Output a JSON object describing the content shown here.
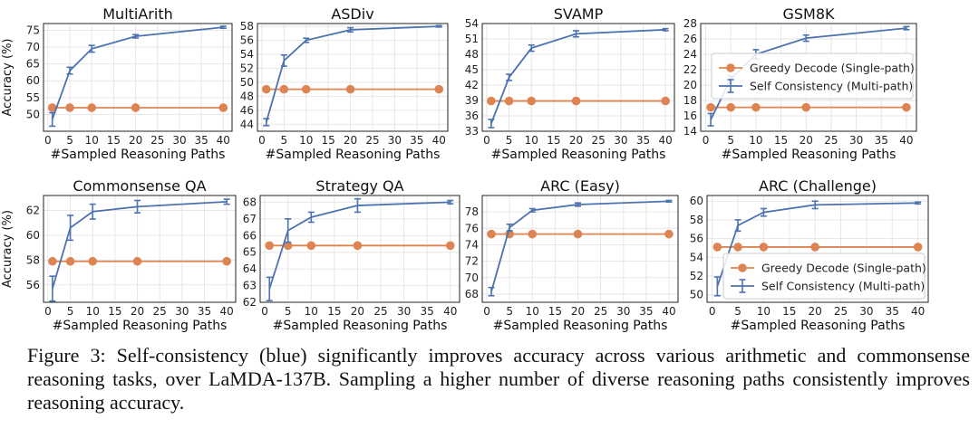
{
  "colors": {
    "greedy": "#dd8452",
    "self_consistency": "#4c72b0",
    "grid": "#e6e6e6",
    "axis": "#222222"
  },
  "chart_data": [
    {
      "type": "line",
      "title": "MultiArith",
      "xlabel": "#Sampled Reasoning Paths",
      "ylabel": "Accuracy (%)",
      "x": [
        1,
        5,
        10,
        20,
        40
      ],
      "xticks": [
        0,
        5,
        10,
        15,
        20,
        25,
        30,
        35,
        40
      ],
      "ylim": [
        45,
        77
      ],
      "yticks": [
        50,
        55,
        60,
        65,
        70,
        75
      ],
      "grid": true,
      "legend": "none",
      "series": [
        {
          "key": "greedy",
          "values": [
            52,
            52,
            52,
            52,
            52
          ],
          "error": [
            0,
            0,
            0,
            0,
            0
          ]
        },
        {
          "key": "sc",
          "values": [
            48.5,
            63,
            69.5,
            73.2,
            75.9
          ],
          "error": [
            2,
            1,
            1,
            0.5,
            0.3
          ]
        }
      ]
    },
    {
      "type": "line",
      "title": "ASDiv",
      "xlabel": "#Sampled Reasoning Paths",
      "ylabel": "",
      "x": [
        1,
        5,
        10,
        20,
        40
      ],
      "xticks": [
        0,
        5,
        10,
        15,
        20,
        25,
        30,
        35,
        40
      ],
      "ylim": [
        43,
        58.4
      ],
      "yticks": [
        44,
        46,
        48,
        50,
        52,
        54,
        56,
        58
      ],
      "grid": true,
      "legend": "none",
      "series": [
        {
          "key": "greedy",
          "values": [
            49,
            49,
            49,
            49,
            49
          ],
          "error": [
            0,
            0,
            0,
            0,
            0
          ]
        },
        {
          "key": "sc",
          "values": [
            44.3,
            53.1,
            56,
            57.5,
            58
          ],
          "error": [
            0.5,
            0.8,
            0.3,
            0.3,
            0.1
          ]
        }
      ]
    },
    {
      "type": "line",
      "title": "SVAMP",
      "xlabel": "#Sampled Reasoning Paths",
      "ylabel": "",
      "x": [
        1,
        5,
        10,
        20,
        40
      ],
      "xticks": [
        0,
        5,
        10,
        15,
        20,
        25,
        30,
        35,
        40
      ],
      "ylim": [
        33,
        54
      ],
      "yticks": [
        33,
        36,
        39,
        42,
        45,
        48,
        51,
        54
      ],
      "grid": true,
      "legend": "none",
      "series": [
        {
          "key": "greedy",
          "values": [
            38.9,
            38.9,
            38.9,
            38.9,
            38.9
          ],
          "error": [
            0,
            0,
            0,
            0,
            0
          ]
        },
        {
          "key": "sc",
          "values": [
            34.5,
            43.5,
            49.2,
            52,
            52.8
          ],
          "error": [
            0.8,
            0.6,
            0.6,
            0.6,
            0.2
          ]
        }
      ]
    },
    {
      "type": "line",
      "title": "GSM8K",
      "xlabel": "#Sampled Reasoning Paths",
      "ylabel": "",
      "x": [
        1,
        5,
        10,
        20,
        40
      ],
      "xticks": [
        0,
        5,
        10,
        15,
        20,
        25,
        30,
        35,
        40
      ],
      "ylim": [
        14,
        28
      ],
      "yticks": [
        14,
        16,
        18,
        20,
        22,
        24,
        26,
        28
      ],
      "grid": true,
      "legend": "middle-right",
      "series": [
        {
          "key": "greedy",
          "values": [
            17.1,
            17.1,
            17.1,
            17.1,
            17.1
          ],
          "error": [
            0,
            0,
            0,
            0,
            0
          ]
        },
        {
          "key": "sc",
          "values": [
            15.5,
            20.8,
            24,
            26.1,
            27.4
          ],
          "error": [
            0.8,
            0.4,
            0.6,
            0.4,
            0.2
          ]
        }
      ]
    },
    {
      "type": "line",
      "title": "Commonsense QA",
      "xlabel": "#Sampled Reasoning Paths",
      "ylabel": "Accuracy (%)",
      "x": [
        1,
        5,
        10,
        20,
        40
      ],
      "xticks": [
        0,
        5,
        10,
        15,
        20,
        25,
        30,
        35,
        40
      ],
      "ylim": [
        54.6,
        63.2
      ],
      "yticks": [
        56,
        58,
        60,
        62
      ],
      "grid": true,
      "legend": "none",
      "series": [
        {
          "key": "greedy",
          "values": [
            57.9,
            57.9,
            57.9,
            57.9,
            57.9
          ],
          "error": [
            0,
            0,
            0,
            0,
            0
          ]
        },
        {
          "key": "sc",
          "values": [
            55.7,
            60.6,
            61.9,
            62.3,
            62.7
          ],
          "error": [
            1,
            1,
            0.6,
            0.5,
            0.2
          ]
        }
      ]
    },
    {
      "type": "line",
      "title": "Strategy QA",
      "xlabel": "#Sampled Reasoning Paths",
      "ylabel": "",
      "x": [
        1,
        5,
        10,
        20,
        40
      ],
      "xticks": [
        0,
        5,
        10,
        15,
        20,
        25,
        30,
        35,
        40
      ],
      "ylim": [
        62,
        68.4
      ],
      "yticks": [
        62,
        63,
        64,
        65,
        66,
        67,
        68
      ],
      "grid": true,
      "legend": "none",
      "series": [
        {
          "key": "greedy",
          "values": [
            65.4,
            65.4,
            65.4,
            65.4,
            65.4
          ],
          "error": [
            0,
            0,
            0,
            0,
            0
          ]
        },
        {
          "key": "sc",
          "values": [
            62.8,
            66.3,
            67.1,
            67.8,
            68
          ],
          "error": [
            0.7,
            0.7,
            0.3,
            0.4,
            0.1
          ]
        }
      ]
    },
    {
      "type": "line",
      "title": "ARC (Easy)",
      "xlabel": "#Sampled Reasoning Paths",
      "ylabel": "",
      "x": [
        1,
        5,
        10,
        20,
        40
      ],
      "xticks": [
        0,
        5,
        10,
        15,
        20,
        25,
        30,
        35,
        40
      ],
      "ylim": [
        67,
        80
      ],
      "yticks": [
        68,
        70,
        72,
        74,
        76,
        78
      ],
      "grid": true,
      "legend": "none",
      "series": [
        {
          "key": "greedy",
          "values": [
            75.3,
            75.3,
            75.3,
            75.3,
            75.3
          ],
          "error": [
            0,
            0,
            0,
            0,
            0
          ]
        },
        {
          "key": "sc",
          "values": [
            68.3,
            76.1,
            78.2,
            78.9,
            79.3
          ],
          "error": [
            0.5,
            0.4,
            0.2,
            0.2,
            0.1
          ]
        }
      ]
    },
    {
      "type": "line",
      "title": "ARC (Challenge)",
      "xlabel": "#Sampled Reasoning Paths",
      "ylabel": "",
      "x": [
        1,
        5,
        10,
        20,
        40
      ],
      "xticks": [
        0,
        5,
        10,
        15,
        20,
        25,
        30,
        35,
        40
      ],
      "ylim": [
        49.2,
        60.6
      ],
      "yticks": [
        50,
        52,
        54,
        56,
        58,
        60
      ],
      "grid": true,
      "legend": "lower-right",
      "series": [
        {
          "key": "greedy",
          "values": [
            55.1,
            55.1,
            55.1,
            55.1,
            55.1
          ],
          "error": [
            0,
            0,
            0,
            0,
            0
          ]
        },
        {
          "key": "sc",
          "values": [
            50.9,
            57.4,
            58.8,
            59.6,
            59.8
          ],
          "error": [
            1,
            0.6,
            0.4,
            0.4,
            0.1
          ]
        }
      ]
    }
  ],
  "legend": {
    "greedy_label": "Greedy Decode (Single-path)",
    "sc_label": "Self Consistency (Multi-path)"
  },
  "caption": "Figure 3: Self-consistency (blue) significantly improves accuracy across various arithmetic and commonsense reasoning tasks, over LaMDA-137B. Sampling a higher number of diverse reasoning paths consistently improves reasoning accuracy."
}
